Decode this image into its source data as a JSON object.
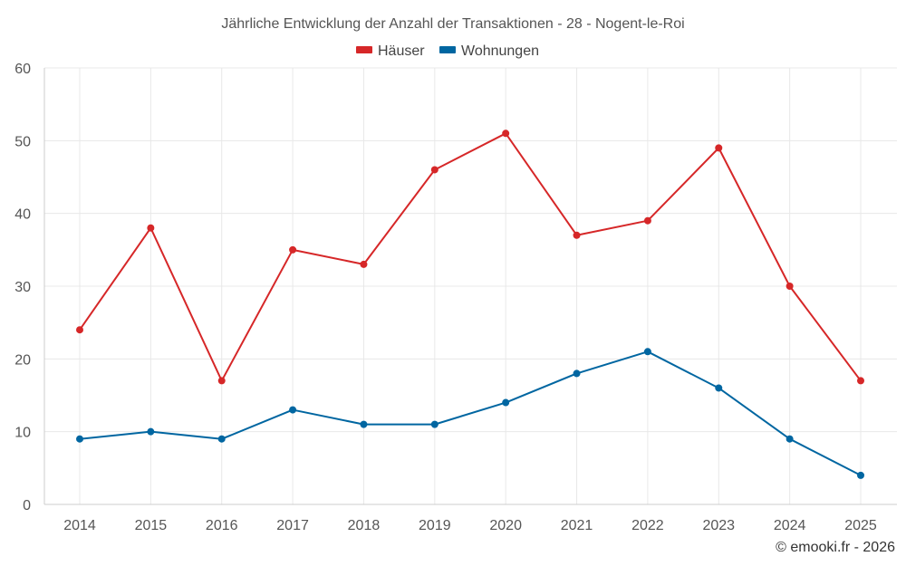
{
  "chart_data": {
    "type": "line",
    "title": "Jährliche Entwicklung der Anzahl der Transaktionen - 28 - Nogent-le-Roi",
    "categories": [
      "2014",
      "2015",
      "2016",
      "2017",
      "2018",
      "2019",
      "2020",
      "2021",
      "2022",
      "2023",
      "2024",
      "2025"
    ],
    "series": [
      {
        "name": "Häuser",
        "color": "#d62728",
        "values": [
          24,
          38,
          17,
          35,
          33,
          46,
          51,
          37,
          39,
          49,
          30,
          17
        ]
      },
      {
        "name": "Wohnungen",
        "color": "#0066a1",
        "values": [
          9,
          10,
          9,
          13,
          11,
          11,
          14,
          18,
          21,
          16,
          9,
          4
        ]
      }
    ],
    "ylim": [
      0,
      60
    ],
    "yticks": [
      "0",
      "10",
      "20",
      "30",
      "40",
      "50",
      "60"
    ],
    "xlabel": "",
    "ylabel": "",
    "grid": true,
    "legend_position": "top-center"
  },
  "credit": "© emooki.fr - 2026"
}
